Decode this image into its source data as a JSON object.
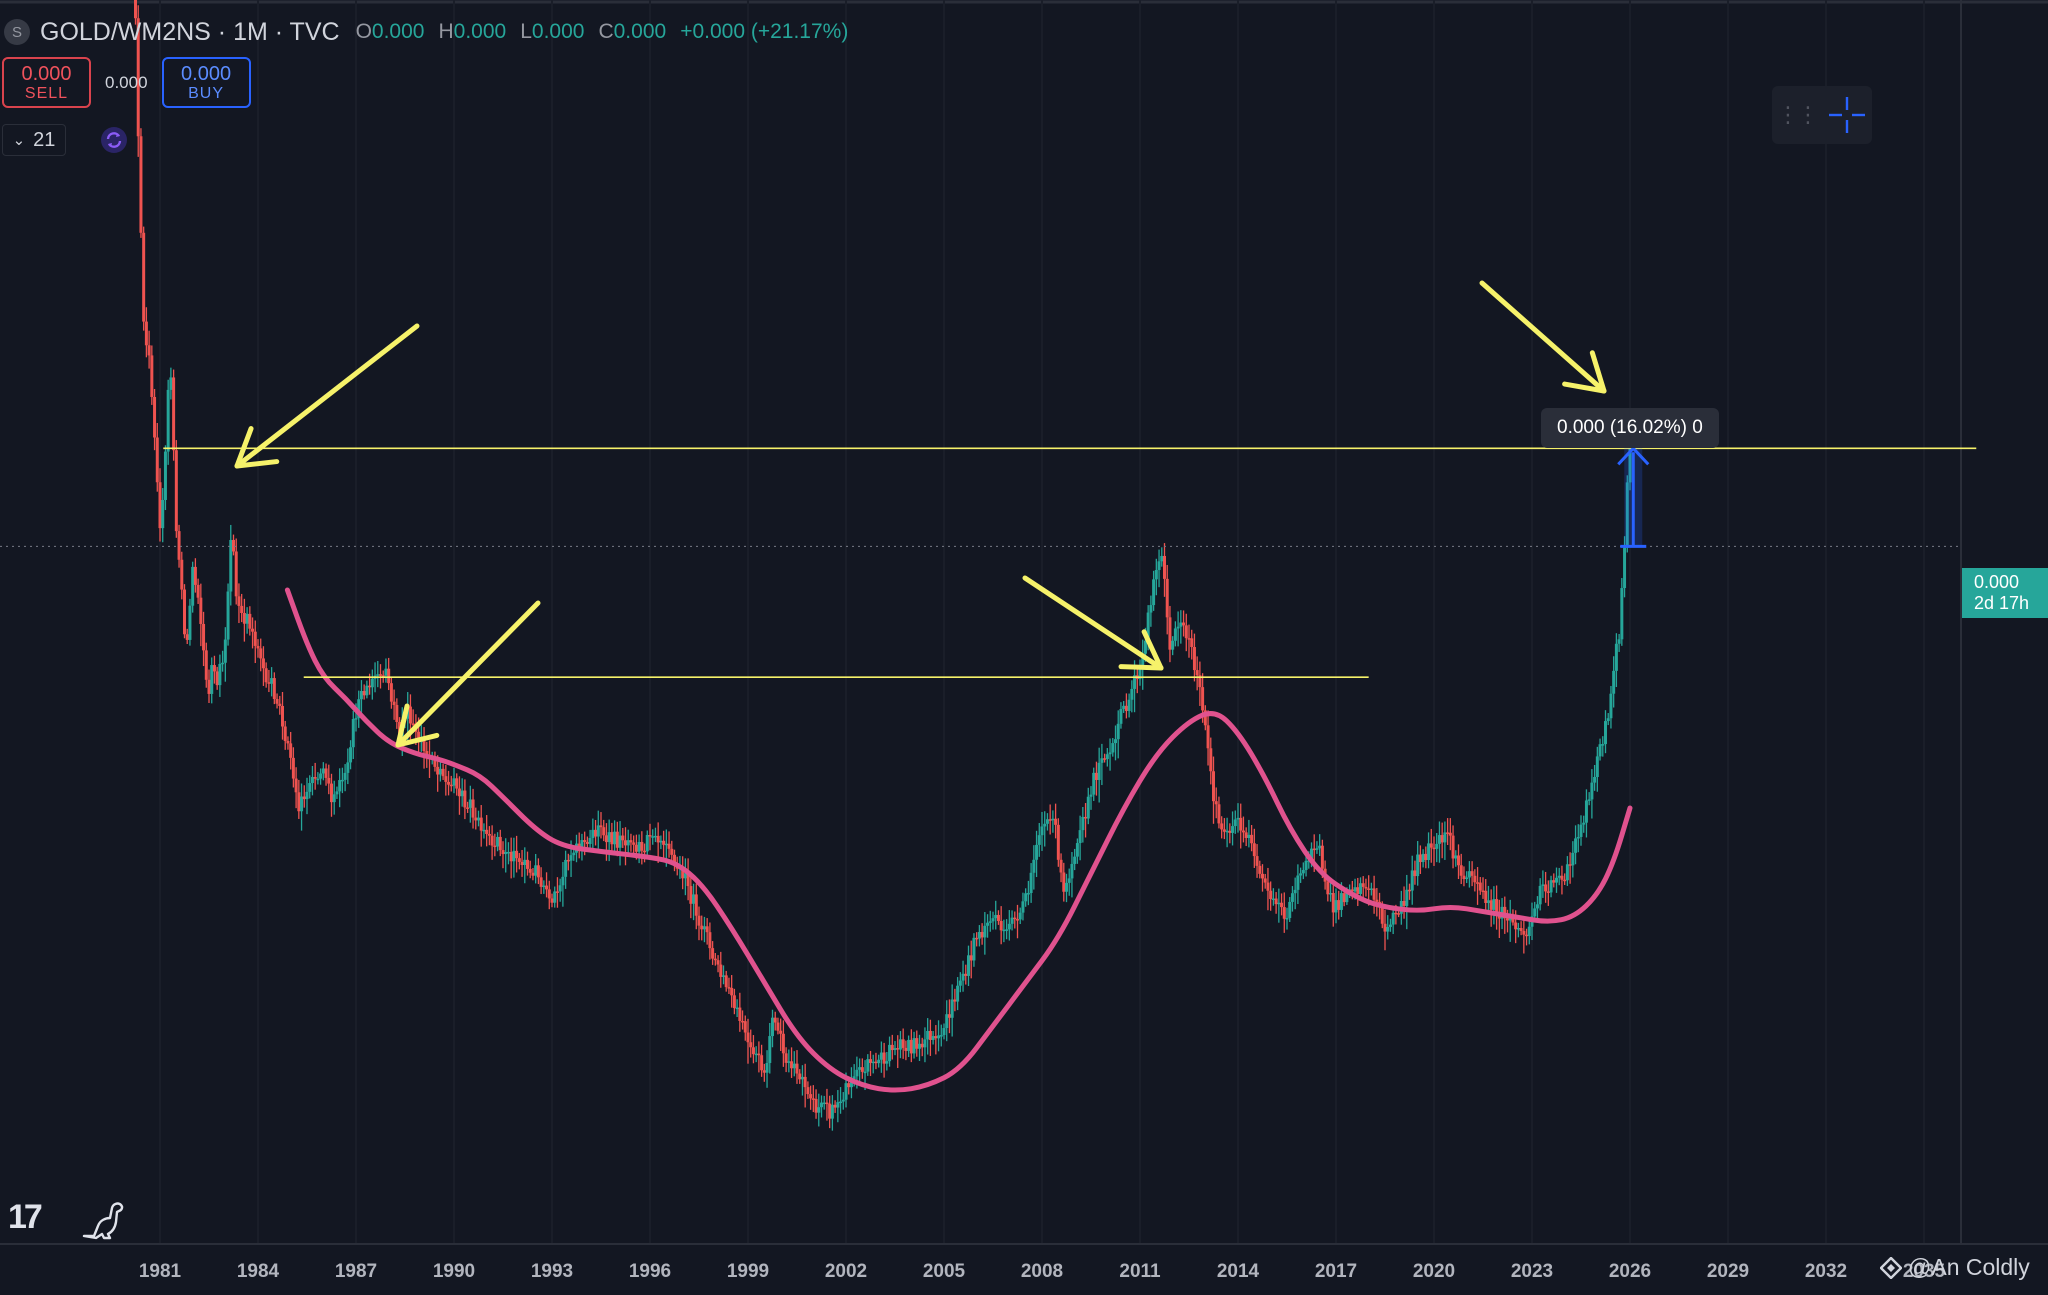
{
  "header": {
    "symbol_icon": "S",
    "symbol": "GOLD/WM2NS · 1M · TVC",
    "ohlc": [
      {
        "key": "O",
        "value": "0.000"
      },
      {
        "key": "H",
        "value": "0.000"
      },
      {
        "key": "L",
        "value": "0.000"
      },
      {
        "key": "C",
        "value": "0.000"
      }
    ],
    "change": "+0.000 (+21.17%)"
  },
  "trade": {
    "sell_value": "0.000",
    "sell_label": "SELL",
    "spread": "0.000",
    "buy_value": "0.000",
    "buy_label": "BUY"
  },
  "indicator_panel": {
    "count": "21"
  },
  "icons": {
    "symbol": "symbol-icon",
    "collapse": "chevron-down-icon",
    "refresh": "refresh-icon",
    "grip": "drag-handle-icon",
    "crosshair": "crosshair-icon",
    "logo": "tradingview-logo-icon",
    "dino": "dinosaur-icon",
    "watermark": "binance-logo-icon"
  },
  "measure_tooltip": "0.000 (16.02%) 0",
  "last_price": {
    "value": "0.000",
    "countdown": "2d 17h"
  },
  "watermark": "@An Coldly",
  "colors": {
    "background": "#131722",
    "up": "#26a69a",
    "down": "#ef5350",
    "moving_average": "#e0528e",
    "annotation": "#f6f26a",
    "measure": "#2962ff"
  },
  "chart_data": {
    "type": "candlestick",
    "timeframe": "1M",
    "x_ticks": [
      "1981",
      "1984",
      "1987",
      "1990",
      "1993",
      "1996",
      "1999",
      "2002",
      "2005",
      "2008",
      "2011",
      "2014",
      "2017",
      "2020",
      "2023",
      "2026",
      "2029",
      "2032",
      "2035"
    ],
    "xlim": [
      1980.0,
      2036.6
    ],
    "y_scale": "relative",
    "price_path": [
      [
        1980.0,
        1.0
      ],
      [
        1980.2,
        0.78
      ],
      [
        1980.35,
        0.6
      ],
      [
        1980.5,
        0.45
      ],
      [
        1980.7,
        0.4
      ],
      [
        1980.9,
        0.3
      ],
      [
        1981.0,
        0.25
      ],
      [
        1981.15,
        0.32
      ],
      [
        1981.3,
        0.42
      ],
      [
        1981.5,
        0.26
      ],
      [
        1981.8,
        0.14
      ],
      [
        1982.0,
        0.22
      ],
      [
        1982.2,
        0.18
      ],
      [
        1982.5,
        0.1
      ],
      [
        1982.6,
        0.14
      ],
      [
        1982.75,
        0.12
      ],
      [
        1983.0,
        0.15
      ],
      [
        1983.2,
        0.26
      ],
      [
        1983.35,
        0.19
      ],
      [
        1983.7,
        0.17
      ],
      [
        1984.0,
        0.14
      ],
      [
        1984.3,
        0.12
      ],
      [
        1984.6,
        0.1
      ],
      [
        1985.0,
        0.04
      ],
      [
        1985.25,
        0.0
      ],
      [
        1985.6,
        0.02
      ],
      [
        1986.0,
        0.03
      ],
      [
        1986.3,
        0.01
      ],
      [
        1986.7,
        0.04
      ],
      [
        1987.0,
        0.09
      ],
      [
        1987.5,
        0.12
      ],
      [
        1987.9,
        0.13
      ],
      [
        1988.3,
        0.07
      ],
      [
        1988.6,
        0.09
      ],
      [
        1989.0,
        0.06
      ],
      [
        1989.5,
        0.03
      ],
      [
        1990.0,
        0.02
      ],
      [
        1990.5,
        0.0
      ],
      [
        1991.0,
        -0.02
      ],
      [
        1991.5,
        -0.04
      ],
      [
        1992.0,
        -0.05
      ],
      [
        1992.5,
        -0.06
      ],
      [
        1993.0,
        -0.08
      ],
      [
        1993.5,
        -0.05
      ],
      [
        1994.0,
        -0.03
      ],
      [
        1994.5,
        -0.02
      ],
      [
        1995.0,
        -0.03
      ],
      [
        1995.5,
        -0.04
      ],
      [
        1996.0,
        -0.03
      ],
      [
        1996.5,
        -0.04
      ],
      [
        1997.0,
        -0.06
      ],
      [
        1997.5,
        -0.1
      ],
      [
        1998.0,
        -0.14
      ],
      [
        1998.5,
        -0.17
      ],
      [
        1999.0,
        -0.21
      ],
      [
        1999.5,
        -0.24
      ],
      [
        1999.8,
        -0.19
      ],
      [
        2000.2,
        -0.23
      ],
      [
        2000.6,
        -0.25
      ],
      [
        2001.0,
        -0.27
      ],
      [
        2001.5,
        -0.28
      ],
      [
        2002.0,
        -0.26
      ],
      [
        2002.5,
        -0.24
      ],
      [
        2003.0,
        -0.23
      ],
      [
        2003.5,
        -0.22
      ],
      [
        2004.0,
        -0.22
      ],
      [
        2004.5,
        -0.21
      ],
      [
        2005.0,
        -0.2
      ],
      [
        2005.5,
        -0.16
      ],
      [
        2006.0,
        -0.12
      ],
      [
        2006.5,
        -0.1
      ],
      [
        2007.0,
        -0.11
      ],
      [
        2007.5,
        -0.08
      ],
      [
        2008.0,
        -0.02
      ],
      [
        2008.3,
        0.0
      ],
      [
        2008.7,
        -0.08
      ],
      [
        2009.0,
        -0.05
      ],
      [
        2009.5,
        0.02
      ],
      [
        2010.0,
        0.05
      ],
      [
        2010.5,
        0.09
      ],
      [
        2011.0,
        0.13
      ],
      [
        2011.4,
        0.2
      ],
      [
        2011.65,
        0.24
      ],
      [
        2011.9,
        0.15
      ],
      [
        2012.3,
        0.17
      ],
      [
        2012.7,
        0.13
      ],
      [
        2013.0,
        0.08
      ],
      [
        2013.3,
        0.0
      ],
      [
        2013.6,
        -0.03
      ],
      [
        2014.0,
        -0.01
      ],
      [
        2014.5,
        -0.04
      ],
      [
        2015.0,
        -0.08
      ],
      [
        2015.5,
        -0.1
      ],
      [
        2016.0,
        -0.05
      ],
      [
        2016.5,
        -0.04
      ],
      [
        2016.9,
        -0.09
      ],
      [
        2017.5,
        -0.08
      ],
      [
        2018.0,
        -0.07
      ],
      [
        2018.5,
        -0.11
      ],
      [
        2019.0,
        -0.09
      ],
      [
        2019.5,
        -0.05
      ],
      [
        2020.0,
        -0.03
      ],
      [
        2020.4,
        -0.02
      ],
      [
        2020.8,
        -0.06
      ],
      [
        2021.3,
        -0.07
      ],
      [
        2021.8,
        -0.09
      ],
      [
        2022.3,
        -0.1
      ],
      [
        2022.8,
        -0.12
      ],
      [
        2023.2,
        -0.08
      ],
      [
        2023.7,
        -0.07
      ],
      [
        2024.0,
        -0.06
      ],
      [
        2024.5,
        -0.02
      ],
      [
        2025.0,
        0.04
      ],
      [
        2025.4,
        0.1
      ],
      [
        2025.7,
        0.17
      ],
      [
        2025.9,
        0.28
      ],
      [
        2026.0,
        0.36
      ]
    ],
    "moving_average": [
      [
        1984.9,
        0.2
      ],
      [
        1985.5,
        0.15
      ],
      [
        1986.0,
        0.12
      ],
      [
        1986.7,
        0.1
      ],
      [
        1987.3,
        0.08
      ],
      [
        1988.0,
        0.06
      ],
      [
        1988.8,
        0.05
      ],
      [
        1989.5,
        0.045
      ],
      [
        1990.0,
        0.04
      ],
      [
        1990.8,
        0.03
      ],
      [
        1991.5,
        0.01
      ],
      [
        1992.5,
        -0.02
      ],
      [
        1993.3,
        -0.035
      ],
      [
        1994.5,
        -0.04
      ],
      [
        1996.0,
        -0.045
      ],
      [
        1996.8,
        -0.05
      ],
      [
        1997.6,
        -0.07
      ],
      [
        1998.5,
        -0.11
      ],
      [
        1999.5,
        -0.16
      ],
      [
        2000.5,
        -0.21
      ],
      [
        2001.5,
        -0.24
      ],
      [
        2002.5,
        -0.255
      ],
      [
        2003.5,
        -0.26
      ],
      [
        2004.5,
        -0.255
      ],
      [
        2005.5,
        -0.24
      ],
      [
        2006.5,
        -0.2
      ],
      [
        2007.5,
        -0.16
      ],
      [
        2008.5,
        -0.12
      ],
      [
        2009.5,
        -0.06
      ],
      [
        2010.5,
        0.0
      ],
      [
        2011.5,
        0.05
      ],
      [
        2012.5,
        0.08
      ],
      [
        2013.3,
        0.09
      ],
      [
        2014.0,
        0.07
      ],
      [
        2014.8,
        0.03
      ],
      [
        2015.6,
        -0.02
      ],
      [
        2016.5,
        -0.06
      ],
      [
        2017.5,
        -0.08
      ],
      [
        2018.3,
        -0.09
      ],
      [
        2019.5,
        -0.095
      ],
      [
        2020.5,
        -0.09
      ],
      [
        2021.5,
        -0.095
      ],
      [
        2022.5,
        -0.1
      ],
      [
        2023.5,
        -0.105
      ],
      [
        2024.3,
        -0.1
      ],
      [
        2025.0,
        -0.08
      ],
      [
        2025.5,
        -0.05
      ],
      [
        2026.0,
        0.0
      ]
    ],
    "resistance_lines": [
      {
        "y": 0.33,
        "x_start": 1981.1,
        "x_end": 2036.6
      },
      {
        "y": 0.12,
        "x_start": 1985.4,
        "x_end": 2018.0
      }
    ],
    "measure": {
      "x": 2026.1,
      "y_from": 0.24,
      "y_to": 0.33,
      "change_pct": 16.02
    },
    "last_price_line": 0.24
  }
}
